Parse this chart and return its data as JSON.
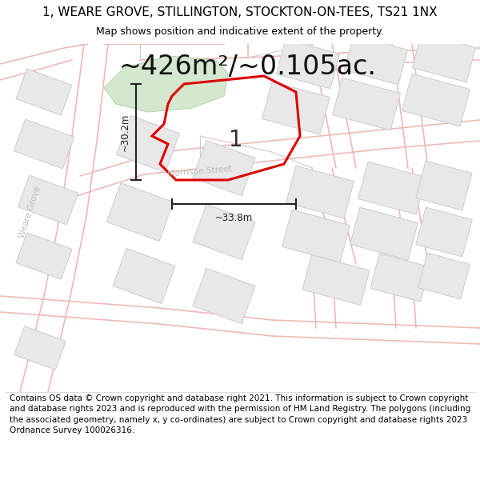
{
  "title": "1, WEARE GROVE, STILLINGTON, STOCKTON-ON-TEES, TS21 1NX",
  "subtitle": "Map shows position and indicative extent of the property.",
  "area_text": "~426m²/~0.105ac.",
  "plot_number": "1",
  "dim_width": "~33.8m",
  "dim_height": "~30.2m",
  "footer": "Contains OS data © Crown copyright and database right 2021. This information is subject to Crown copyright and database rights 2023 and is reproduced with the permission of HM Land Registry. The polygons (including the associated geometry, namely x, y co-ordinates) are subject to Crown copyright and database rights 2023 Ordnance Survey 100026316.",
  "bg_color": "#ffffff",
  "map_bg": "#ffffff",
  "road_line_color": "#f0b8b8",
  "parcel_line_color": "#d8c8c8",
  "block_fill": "#e8e8e8",
  "block_edge": "#cccccc",
  "green_fill": "#d4e8d0",
  "green_edge": "#b8d4b0",
  "plot_edge": "#dd0000",
  "street_label_color": "#bbbbbb",
  "dim_color": "#222222",
  "title_fontsize": 11,
  "subtitle_fontsize": 9,
  "area_fontsize": 24,
  "plot_label_fontsize": 20,
  "footer_fontsize": 7.5,
  "road_lw": 1.2,
  "parcel_lw": 0.8,
  "plot_lw": 2.2
}
